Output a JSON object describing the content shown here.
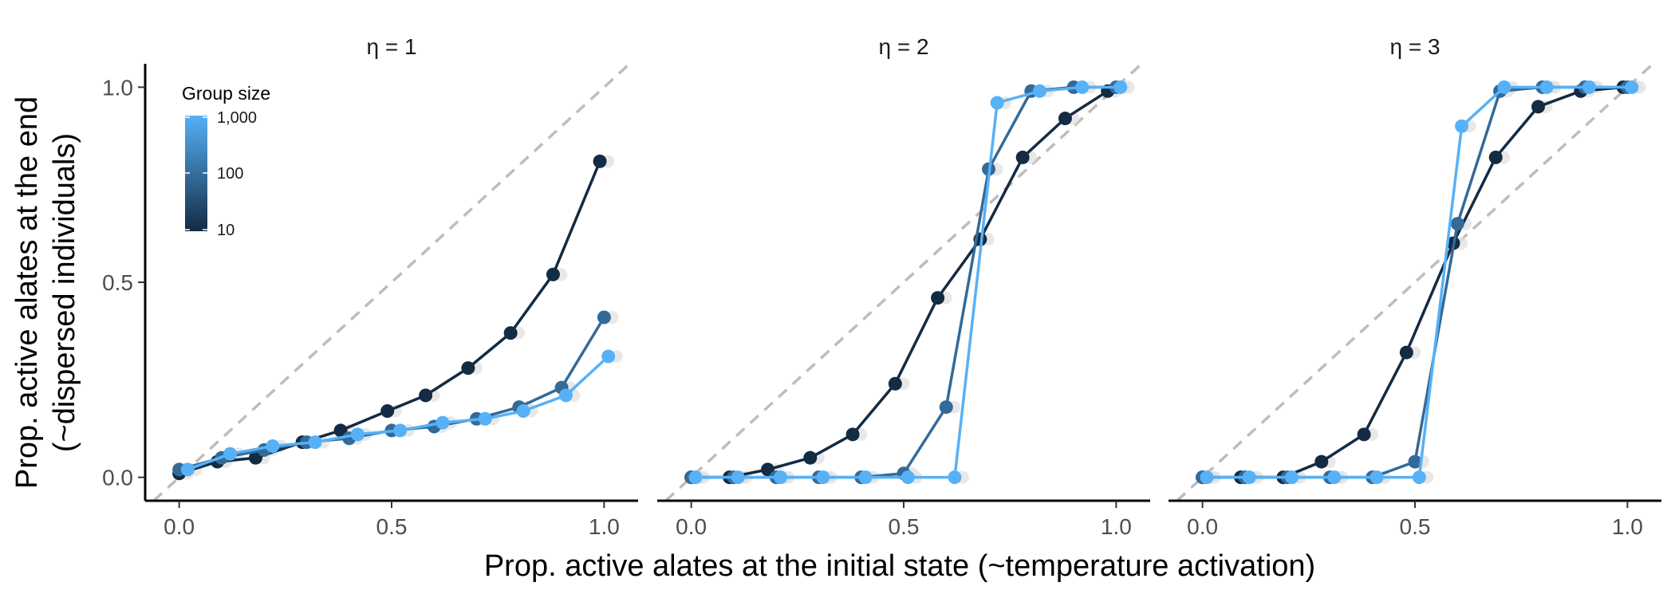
{
  "chart_data": {
    "type": "line",
    "xlabel": "Prop. active alates at the initial state (~temperature activation)",
    "ylabel": "Prop. active alates at the end\n(~dispersed individuals)",
    "xlim": [
      -0.08,
      1.08
    ],
    "ylim": [
      -0.06,
      1.06
    ],
    "x_ticks": [
      0,
      0.5,
      1
    ],
    "x_tick_labels": [
      "0.0",
      "0.5",
      "1.0"
    ],
    "y_ticks": [
      0,
      0.5,
      1
    ],
    "y_tick_labels": [
      "0.0",
      "0.5",
      "1.0"
    ],
    "reference_line": "y = x (dashed)",
    "grid": false,
    "legend": {
      "title": "Group size",
      "type": "colorbar (log scale)",
      "placement": "top-left inside first panel",
      "labels": [
        "1,000",
        "100",
        "10"
      ],
      "color_low": "#132b43",
      "color_high": "#56b1f7"
    },
    "colors": {
      "size_10": "#132b43",
      "size_100": "#336a98",
      "size_1000": "#56b1f7",
      "reference_line": "#bdbdbd",
      "ghost_points": "#e0e0e0"
    },
    "panels": [
      {
        "title": "η = 1",
        "series": [
          {
            "group": 10,
            "color": "#132b43",
            "x": [
              0.0,
              0.09,
              0.18,
              0.29,
              0.38,
              0.49,
              0.58,
              0.68,
              0.78,
              0.88,
              0.99
            ],
            "y": [
              0.01,
              0.04,
              0.05,
              0.09,
              0.12,
              0.17,
              0.21,
              0.28,
              0.37,
              0.52,
              0.81
            ]
          },
          {
            "group": 100,
            "color": "#336a98",
            "x": [
              0.0,
              0.1,
              0.2,
              0.3,
              0.4,
              0.5,
              0.6,
              0.7,
              0.8,
              0.9,
              1.0
            ],
            "y": [
              0.02,
              0.05,
              0.07,
              0.09,
              0.1,
              0.12,
              0.13,
              0.15,
              0.18,
              0.23,
              0.41
            ]
          },
          {
            "group": 1000,
            "color": "#56b1f7",
            "x": [
              0.02,
              0.12,
              0.22,
              0.32,
              0.42,
              0.52,
              0.62,
              0.72,
              0.81,
              0.91,
              1.01
            ],
            "y": [
              0.02,
              0.06,
              0.08,
              0.09,
              0.11,
              0.12,
              0.14,
              0.15,
              0.17,
              0.21,
              0.31
            ]
          }
        ]
      },
      {
        "title": "η = 2",
        "series": [
          {
            "group": 10,
            "color": "#132b43",
            "x": [
              0.0,
              0.09,
              0.18,
              0.28,
              0.38,
              0.48,
              0.58,
              0.68,
              0.78,
              0.88,
              0.98
            ],
            "y": [
              0.0,
              0.0,
              0.02,
              0.05,
              0.11,
              0.24,
              0.46,
              0.61,
              0.82,
              0.92,
              0.99
            ]
          },
          {
            "group": 100,
            "color": "#336a98",
            "x": [
              0.0,
              0.1,
              0.2,
              0.3,
              0.4,
              0.5,
              0.6,
              0.7,
              0.8,
              0.9,
              1.0
            ],
            "y": [
              0.0,
              0.0,
              0.0,
              0.0,
              0.0,
              0.01,
              0.18,
              0.79,
              0.99,
              1.0,
              1.0
            ]
          },
          {
            "group": 1000,
            "color": "#56b1f7",
            "x": [
              0.01,
              0.11,
              0.21,
              0.31,
              0.41,
              0.51,
              0.62,
              0.72,
              0.82,
              0.92,
              1.01
            ],
            "y": [
              0.0,
              0.0,
              0.0,
              0.0,
              0.0,
              0.0,
              0.0,
              0.96,
              0.99,
              1.0,
              1.0
            ]
          }
        ]
      },
      {
        "title": "η = 3",
        "series": [
          {
            "group": 10,
            "color": "#132b43",
            "x": [
              0.0,
              0.09,
              0.19,
              0.28,
              0.38,
              0.48,
              0.59,
              0.69,
              0.79,
              0.89,
              0.99
            ],
            "y": [
              0.0,
              0.0,
              0.0,
              0.04,
              0.11,
              0.32,
              0.6,
              0.82,
              0.95,
              0.99,
              1.0
            ]
          },
          {
            "group": 100,
            "color": "#336a98",
            "x": [
              0.0,
              0.1,
              0.2,
              0.3,
              0.4,
              0.5,
              0.6,
              0.7,
              0.8,
              0.9,
              1.0
            ],
            "y": [
              0.0,
              0.0,
              0.0,
              0.0,
              0.0,
              0.04,
              0.65,
              0.99,
              1.0,
              1.0,
              1.0
            ]
          },
          {
            "group": 1000,
            "color": "#56b1f7",
            "x": [
              0.01,
              0.11,
              0.21,
              0.31,
              0.41,
              0.51,
              0.61,
              0.71,
              0.81,
              0.91,
              1.01
            ],
            "y": [
              0.0,
              0.0,
              0.0,
              0.0,
              0.0,
              0.0,
              0.9,
              1.0,
              1.0,
              1.0,
              1.0
            ]
          }
        ]
      }
    ]
  }
}
